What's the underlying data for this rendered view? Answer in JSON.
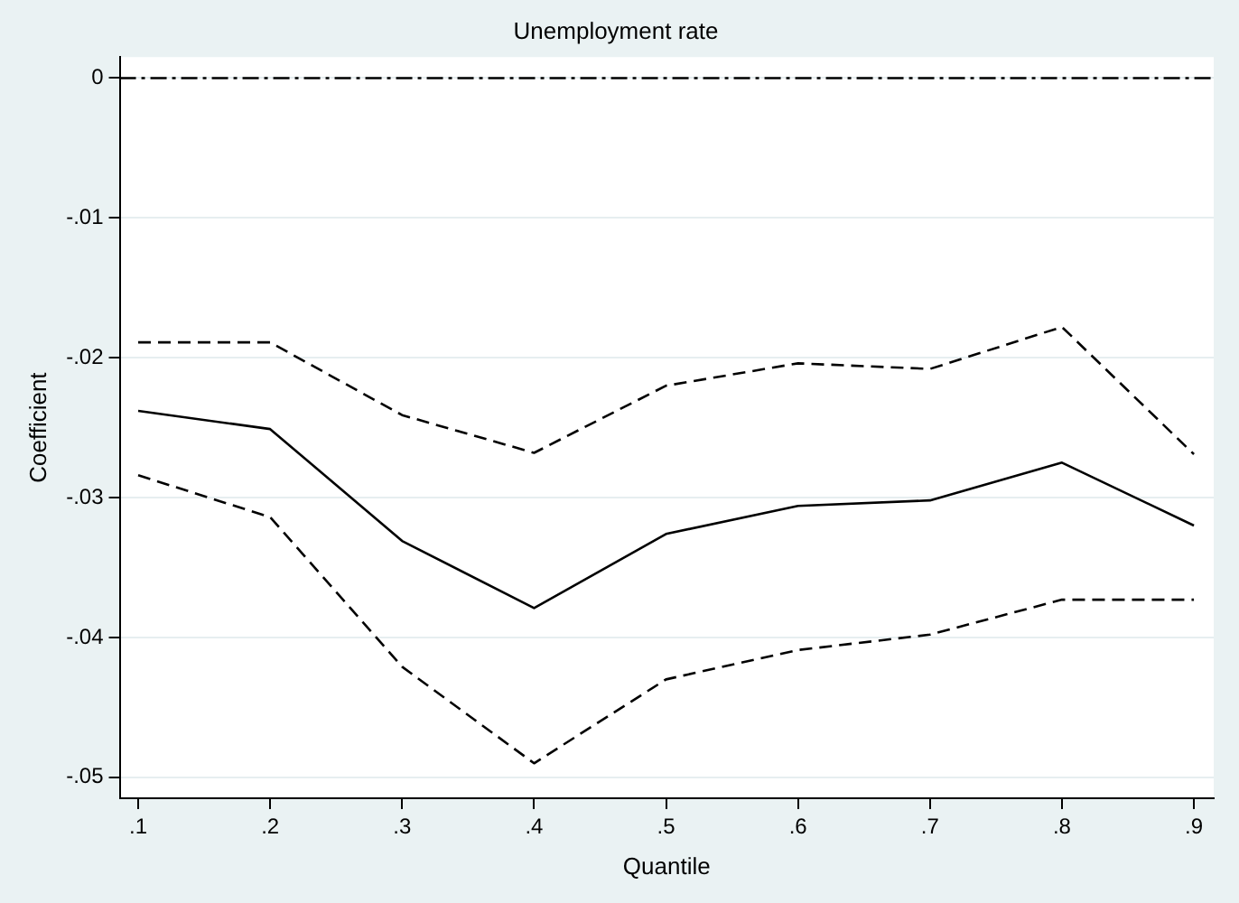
{
  "chart_data": {
    "type": "line",
    "title": "Unemployment rate",
    "xlabel": "Quantile",
    "ylabel": "Coefficient",
    "x": [
      0.1,
      0.2,
      0.3,
      0.4,
      0.5,
      0.6,
      0.7,
      0.8,
      0.9
    ],
    "series": [
      {
        "color": "#000000",
        "line_style": "solid",
        "values": [
          -0.0238,
          -0.0251,
          -0.0331,
          -0.0379,
          -0.0326,
          -0.0306,
          -0.0302,
          -0.0275,
          -0.032
        ]
      },
      {
        "color": "#000000",
        "line_style": "dashed",
        "values": [
          -0.0189,
          -0.0189,
          -0.0241,
          -0.0268,
          -0.022,
          -0.0204,
          -0.0208,
          -0.0178,
          -0.0269
        ]
      },
      {
        "color": "#000000",
        "line_style": "dashed",
        "values": [
          -0.0284,
          -0.0314,
          -0.0421,
          -0.049,
          -0.043,
          -0.0409,
          -0.0398,
          -0.0373,
          -0.0373
        ]
      }
    ],
    "xlim": [
      0.086,
      0.915
    ],
    "xticks": [
      {
        "value": 0.1,
        "label": ".1"
      },
      {
        "value": 0.2,
        "label": ".2"
      },
      {
        "value": 0.3,
        "label": ".3"
      },
      {
        "value": 0.4,
        "label": ".4"
      },
      {
        "value": 0.5,
        "label": ".5"
      },
      {
        "value": 0.6,
        "label": ".6"
      },
      {
        "value": 0.7,
        "label": ".7"
      },
      {
        "value": 0.8,
        "label": ".8"
      },
      {
        "value": 0.9,
        "label": ".9"
      }
    ],
    "ylim": [
      -0.0515,
      0.0015
    ],
    "yticks": [
      {
        "value": -0.05,
        "label": "-.05"
      },
      {
        "value": -0.04,
        "label": "-.04"
      },
      {
        "value": -0.03,
        "label": "-.03"
      },
      {
        "value": -0.02,
        "label": "-.02"
      },
      {
        "value": -0.01,
        "label": "-.01"
      },
      0
    ],
    "ref_lines": [
      {
        "axis": "y",
        "value": 0,
        "color": "#000000"
      }
    ],
    "grid": "y",
    "legend": false,
    "marker": "none"
  }
}
